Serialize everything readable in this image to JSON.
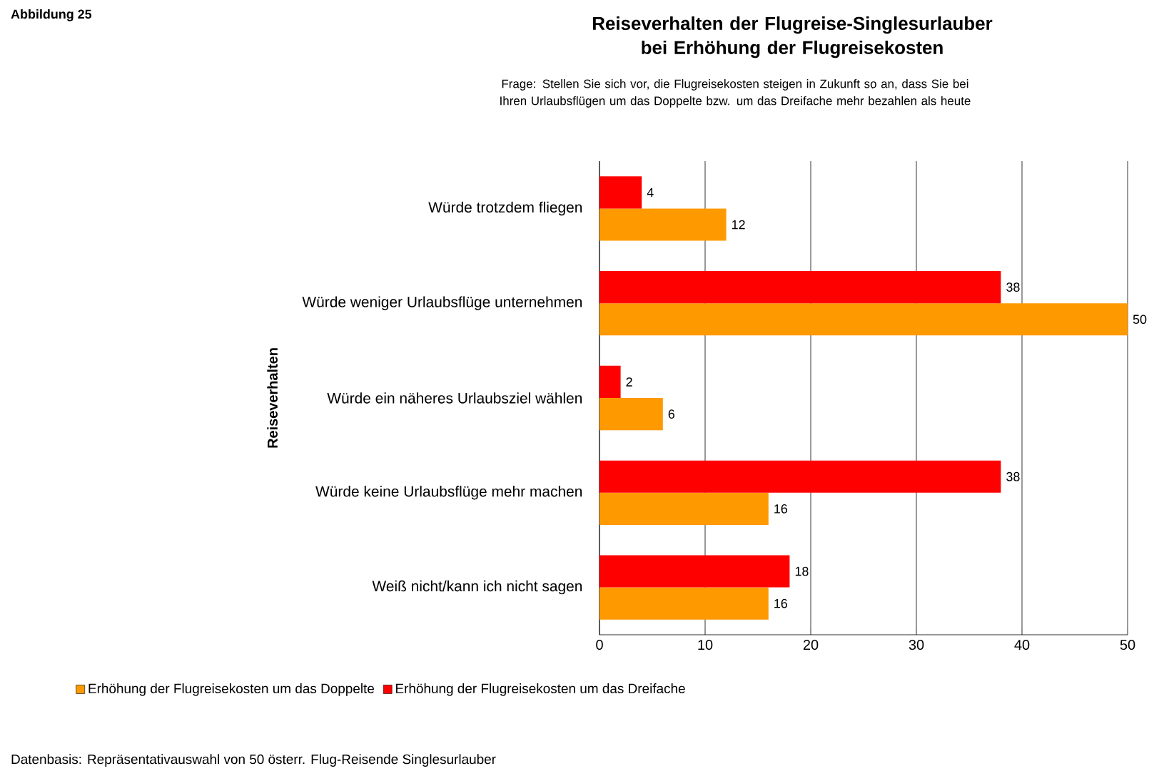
{
  "chart_data": {
    "type": "bar",
    "orientation": "horizontal",
    "title": "Reiseverhalten der Flugreise-Singlesurlauber bei Erhöhung der Flugreisekosten",
    "subtitle": "Frage: Stellen Sie sich vor, die Flugreisekosten steigen in Zukunft so an, dass Sie bei Ihren Urlaubsflügen um das Doppelte bzw. um das Dreifache mehr bezahlen als heute",
    "ylabel": "Reiseverhalten",
    "categories": [
      "Würde trotzdem fliegen",
      "Würde weniger Urlaubsflüge unternehmen",
      "Würde ein näheres Urlaubsziel wählen",
      "Würde keine Urlaubsflüge mehr machen",
      "Weiß nicht/kann ich nicht sagen"
    ],
    "series": [
      {
        "name": "Erhöhung der Flugreisekosten um das Doppelte",
        "color": "#ff9900",
        "values": [
          12,
          50,
          6,
          16,
          16
        ]
      },
      {
        "name": "Erhöhung der Flugreisekosten um das Dreifache",
        "color": "#ff0000",
        "values": [
          4,
          38,
          2,
          38,
          18
        ]
      }
    ],
    "xlim": [
      0,
      50
    ],
    "xticks": [
      0,
      10,
      20,
      30,
      40,
      50
    ],
    "grid": "x",
    "legend": "bottom",
    "data_labels": true,
    "annotations": [
      "Abbildung 25",
      "Datenbasis: Repräsentativauswahl von 50 österr. Flug-Reisende Singlesurlauber"
    ]
  }
}
